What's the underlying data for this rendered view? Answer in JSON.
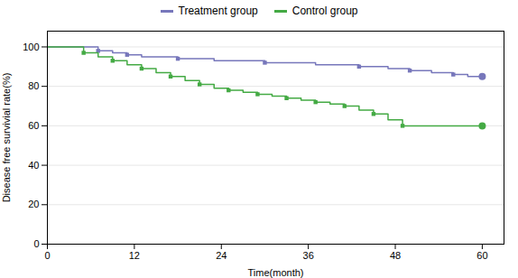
{
  "chart_data": {
    "type": "line",
    "xlabel": "Time(month)",
    "ylabel": "Disease free survivial rate(%)",
    "xlim": [
      0,
      63
    ],
    "ylim": [
      0,
      108
    ],
    "xticks": [
      0,
      12,
      24,
      36,
      48,
      60
    ],
    "yticks": [
      0,
      20,
      40,
      60,
      80,
      100
    ],
    "grid": "y",
    "series": [
      {
        "name": "Treatment group",
        "color": "#7777bb",
        "marker": "square",
        "x": [
          0,
          7,
          7,
          9,
          9,
          11,
          11,
          13,
          13,
          18,
          18,
          23,
          23,
          30,
          30,
          37,
          37,
          43,
          43,
          47,
          47,
          50,
          50,
          53,
          53,
          56,
          56,
          58,
          58,
          60
        ],
        "values": [
          100,
          100,
          98,
          98,
          97,
          97,
          96,
          96,
          95,
          95,
          94,
          94,
          93,
          93,
          92,
          92,
          91,
          91,
          90,
          90,
          89,
          89,
          88,
          88,
          87,
          87,
          86,
          86,
          85,
          85
        ],
        "markers": {
          "x": [
            7,
            11,
            18,
            30,
            43,
            50,
            56,
            60
          ],
          "values": [
            98,
            96,
            94,
            92,
            90,
            88,
            86,
            85
          ]
        },
        "end": {
          "x": 60,
          "value": 85
        }
      },
      {
        "name": "Control group",
        "color": "#44aa44",
        "marker": "square",
        "x": [
          0,
          5,
          5,
          7,
          7,
          9,
          9,
          11,
          11,
          13,
          13,
          15,
          15,
          17,
          17,
          19,
          19,
          21,
          21,
          23,
          23,
          25,
          25,
          27,
          27,
          29,
          29,
          31,
          31,
          33,
          33,
          35,
          35,
          37,
          37,
          39,
          39,
          41,
          41,
          43,
          43,
          45,
          45,
          47,
          47,
          49,
          49,
          60
        ],
        "values": [
          100,
          100,
          97,
          97,
          95,
          95,
          93,
          93,
          91,
          91,
          89,
          89,
          87,
          87,
          85,
          85,
          83,
          83,
          81,
          81,
          79,
          79,
          78,
          78,
          77,
          77,
          76,
          76,
          75,
          75,
          74,
          74,
          73,
          73,
          72,
          72,
          71,
          71,
          70,
          70,
          68,
          68,
          66,
          66,
          63,
          63,
          60,
          60
        ],
        "markers": {
          "x": [
            5,
            9,
            13,
            17,
            21,
            25,
            29,
            33,
            37,
            41,
            45,
            49,
            60
          ],
          "values": [
            97,
            93,
            89,
            85,
            81,
            78,
            76,
            74,
            72,
            70,
            66,
            60,
            60
          ]
        },
        "end": {
          "x": 60,
          "value": 60
        }
      }
    ]
  }
}
